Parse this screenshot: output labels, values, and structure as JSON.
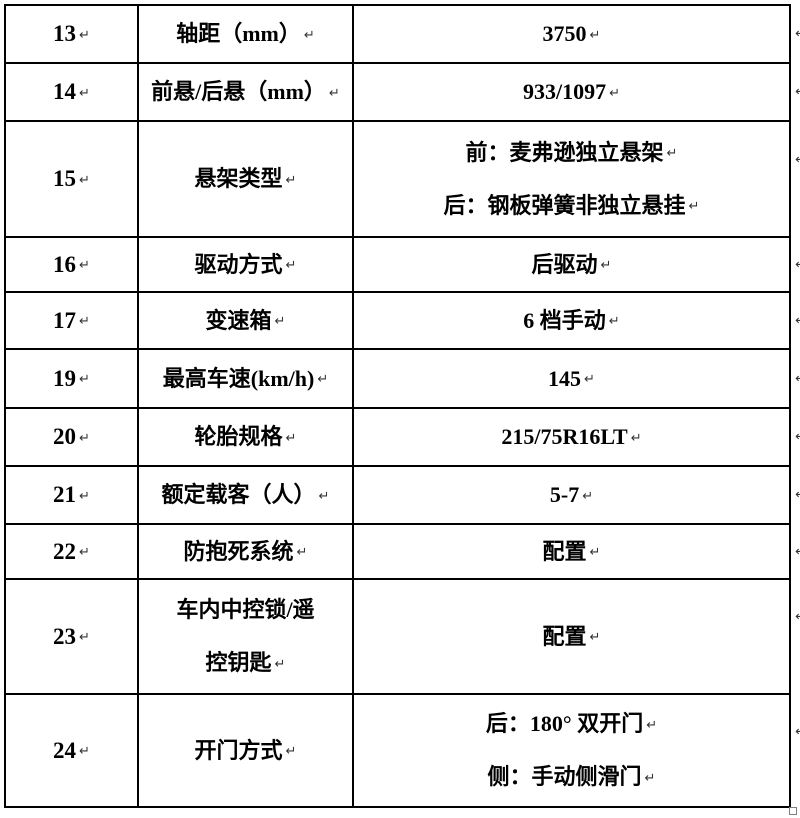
{
  "table": {
    "paragraph_mark": "↵",
    "rows": [
      {
        "no": "13",
        "label": [
          "轴距（mm）"
        ],
        "value": [
          "3750"
        ]
      },
      {
        "no": "14",
        "label": [
          "前悬/后悬（mm）"
        ],
        "value": [
          "933/1097"
        ]
      },
      {
        "no": "15",
        "label": [
          "悬架类型"
        ],
        "value": [
          "前：麦弗逊独立悬架",
          "后：钢板弹簧非独立悬挂"
        ]
      },
      {
        "no": "16",
        "label": [
          "驱动方式"
        ],
        "value": [
          "后驱动"
        ]
      },
      {
        "no": "17",
        "label": [
          "变速箱"
        ],
        "value": [
          "6 档手动"
        ]
      },
      {
        "no": "19",
        "label": [
          "最高车速(km/h)"
        ],
        "value": [
          "145"
        ]
      },
      {
        "no": "20",
        "label": [
          "轮胎规格"
        ],
        "value": [
          "215/75R16LT"
        ]
      },
      {
        "no": "21",
        "label": [
          "额定载客（人）"
        ],
        "value": [
          "5-7"
        ]
      },
      {
        "no": "22",
        "label": [
          "防抱死系统"
        ],
        "value": [
          "配置"
        ]
      },
      {
        "no": "23",
        "label": [
          "车内中控锁/遥",
          "控钥匙"
        ],
        "value": [
          "配置"
        ]
      },
      {
        "no": "24",
        "label": [
          "开门方式"
        ],
        "value": [
          "后：180° 双开门",
          "侧：手动侧滑门"
        ]
      }
    ],
    "colors": {
      "border": "#000000",
      "text": "#000000",
      "mark": "#333333",
      "background": "#ffffff"
    }
  }
}
